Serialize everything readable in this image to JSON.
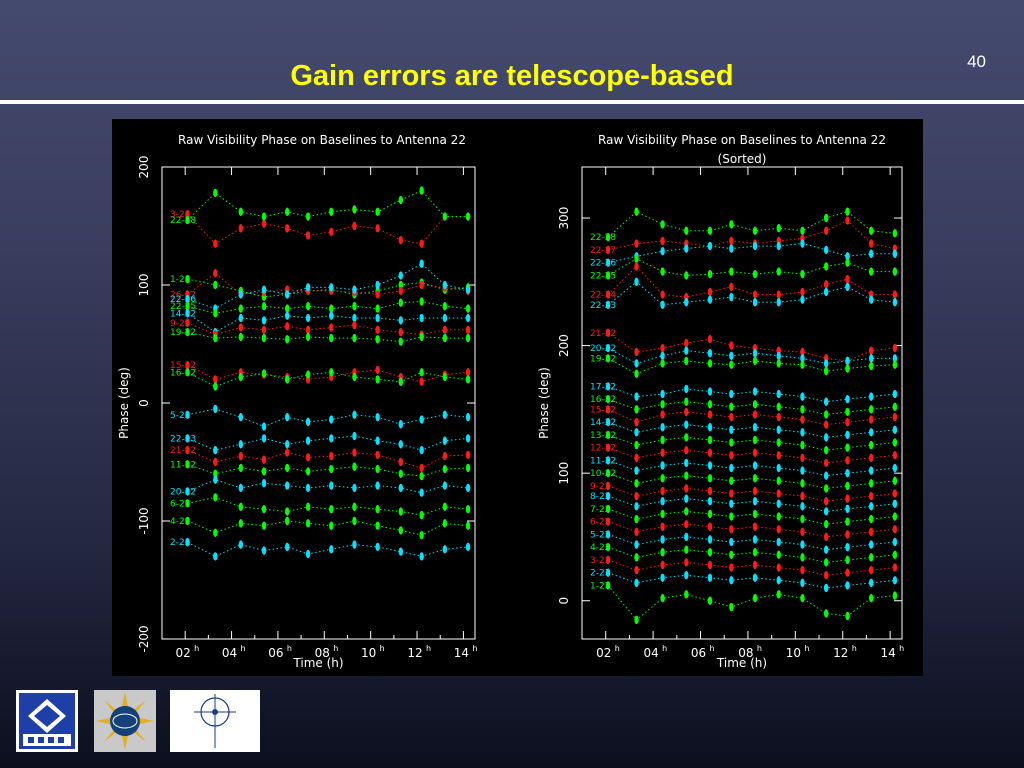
{
  "slide": {
    "number": "40",
    "title": "Gain errors are telescope-based"
  },
  "logos": {
    "nrao": "NRAO",
    "nsf": "NSF",
    "aui": "Associated Universities, Inc."
  },
  "colors": {
    "title": "#ffff00",
    "green": "#00ff00",
    "red": "#ff1a1a",
    "cyan": "#00e5ff"
  },
  "chart_data": [
    {
      "type": "scatter",
      "title": "Raw Visibility Phase on Baselines to Antenna 22",
      "subtitle": "",
      "xlabel": "Time (h)",
      "ylabel": "Phase (deg)",
      "xlim": [
        1.0,
        14.5
      ],
      "ylim": [
        -200,
        200
      ],
      "x_ticks": [
        2,
        4,
        6,
        8,
        10,
        12,
        14
      ],
      "x_tick_labels": [
        "02",
        "04",
        "06",
        "08",
        "10",
        "12",
        "14"
      ],
      "y_ticks": [
        -200,
        -100,
        0,
        100,
        200
      ],
      "y_tick_labels": [
        "-200",
        "-100",
        "0",
        "100",
        "200"
      ],
      "x": [
        2.1,
        3.3,
        4.4,
        5.4,
        6.4,
        7.3,
        8.3,
        9.3,
        10.3,
        11.3,
        12.2,
        13.2,
        14.2
      ],
      "series": [
        {
          "name": "3-22",
          "color": "red",
          "values": [
            160,
            135,
            148,
            152,
            148,
            142,
            145,
            150,
            148,
            138,
            135,
            158,
            158
          ]
        },
        {
          "name": "22-28",
          "color": "green",
          "values": [
            155,
            178,
            162,
            158,
            162,
            158,
            162,
            164,
            162,
            172,
            180,
            158,
            158
          ]
        },
        {
          "name": "1-22",
          "color": "green",
          "values": [
            105,
            100,
            95,
            90,
            92,
            95,
            96,
            92,
            95,
            100,
            102,
            96,
            98
          ]
        },
        {
          "name": "26-22",
          "color": "red",
          "values": [
            92,
            110,
            92,
            94,
            96,
            95,
            95,
            94,
            92,
            95,
            100,
            98,
            95
          ]
        },
        {
          "name": "22-26",
          "color": "cyan",
          "values": [
            88,
            80,
            92,
            96,
            92,
            98,
            98,
            96,
            100,
            108,
            118,
            100,
            96
          ]
        },
        {
          "name": "22-25",
          "color": "green",
          "values": [
            82,
            76,
            80,
            82,
            80,
            82,
            80,
            82,
            80,
            85,
            86,
            82,
            80
          ]
        },
        {
          "name": "14-22",
          "color": "cyan",
          "values": [
            76,
            60,
            72,
            70,
            74,
            72,
            74,
            72,
            72,
            70,
            72,
            72,
            72
          ]
        },
        {
          "name": "9-22",
          "color": "red",
          "values": [
            68,
            58,
            64,
            62,
            65,
            62,
            64,
            66,
            62,
            60,
            58,
            62,
            62
          ]
        },
        {
          "name": "19-22",
          "color": "green",
          "values": [
            60,
            55,
            56,
            55,
            54,
            56,
            55,
            55,
            54,
            52,
            56,
            55,
            55
          ]
        },
        {
          "name": "15-22",
          "color": "red",
          "values": [
            32,
            20,
            26,
            24,
            22,
            20,
            22,
            26,
            28,
            22,
            18,
            24,
            26
          ]
        },
        {
          "name": "16-22",
          "color": "green",
          "values": [
            26,
            14,
            22,
            25,
            20,
            24,
            26,
            22,
            20,
            18,
            26,
            22,
            20
          ]
        },
        {
          "name": "5-22",
          "color": "cyan",
          "values": [
            -10,
            -5,
            -12,
            -20,
            -12,
            -16,
            -14,
            -10,
            -12,
            -18,
            -14,
            -10,
            -12
          ]
        },
        {
          "name": "22-23",
          "color": "cyan",
          "values": [
            -30,
            -40,
            -35,
            -30,
            -35,
            -32,
            -30,
            -28,
            -32,
            -35,
            -40,
            -32,
            -30
          ]
        },
        {
          "name": "21-22",
          "color": "red",
          "values": [
            -40,
            -50,
            -45,
            -48,
            -42,
            -46,
            -45,
            -42,
            -44,
            -50,
            -55,
            -45,
            -44
          ]
        },
        {
          "name": "11-22",
          "color": "green",
          "values": [
            -52,
            -60,
            -55,
            -58,
            -55,
            -58,
            -56,
            -54,
            -56,
            -60,
            -62,
            -56,
            -55
          ]
        },
        {
          "name": "20-22",
          "color": "cyan",
          "values": [
            -75,
            -65,
            -72,
            -68,
            -70,
            -72,
            -70,
            -72,
            -70,
            -72,
            -76,
            -70,
            -72
          ]
        },
        {
          "name": "6-22",
          "color": "green",
          "values": [
            -85,
            -80,
            -88,
            -90,
            -92,
            -88,
            -90,
            -88,
            -90,
            -92,
            -95,
            -88,
            -90
          ]
        },
        {
          "name": "4-22",
          "color": "green",
          "values": [
            -100,
            -110,
            -102,
            -104,
            -100,
            -102,
            -104,
            -100,
            -104,
            -108,
            -112,
            -102,
            -104
          ]
        },
        {
          "name": "2-22",
          "color": "cyan",
          "values": [
            -118,
            -130,
            -120,
            -125,
            -122,
            -128,
            -124,
            -120,
            -122,
            -126,
            -130,
            -124,
            -122
          ]
        }
      ]
    },
    {
      "type": "scatter",
      "title": "Raw Visibility Phase on Baselines to Antenna 22",
      "subtitle": "(Sorted)",
      "xlabel": "Time (h)",
      "ylabel": "Phase (deg)",
      "xlim": [
        1.0,
        14.5
      ],
      "ylim": [
        -30,
        340
      ],
      "x_ticks": [
        2,
        4,
        6,
        8,
        10,
        12,
        14
      ],
      "x_tick_labels": [
        "02",
        "04",
        "06",
        "08",
        "10",
        "12",
        "14"
      ],
      "y_ticks": [
        0,
        100,
        200,
        300
      ],
      "y_tick_labels": [
        "0",
        "100",
        "200",
        "300"
      ],
      "x": [
        2.1,
        3.3,
        4.4,
        5.4,
        6.4,
        7.3,
        8.3,
        9.3,
        10.3,
        11.3,
        12.2,
        13.2,
        14.2
      ],
      "series": [
        {
          "name": "22-28",
          "color": "green",
          "values": [
            285,
            305,
            295,
            290,
            290,
            295,
            290,
            292,
            290,
            300,
            305,
            290,
            288
          ]
        },
        {
          "name": "22-27",
          "color": "red",
          "values": [
            275,
            280,
            282,
            280,
            278,
            282,
            280,
            282,
            284,
            290,
            298,
            280,
            276
          ]
        },
        {
          "name": "22-26",
          "color": "cyan",
          "values": [
            265,
            270,
            274,
            276,
            278,
            276,
            278,
            278,
            280,
            275,
            270,
            272,
            272
          ]
        },
        {
          "name": "22-25",
          "color": "green",
          "values": [
            255,
            268,
            258,
            255,
            256,
            258,
            256,
            258,
            256,
            262,
            265,
            258,
            258
          ]
        },
        {
          "name": "22-24",
          "color": "red",
          "values": [
            240,
            262,
            240,
            238,
            242,
            246,
            240,
            240,
            242,
            248,
            252,
            240,
            240
          ]
        },
        {
          "name": "22-23",
          "color": "cyan",
          "values": [
            232,
            250,
            232,
            234,
            236,
            238,
            234,
            234,
            236,
            242,
            246,
            236,
            234
          ]
        },
        {
          "name": "21-22",
          "color": "red",
          "values": [
            210,
            195,
            198,
            202,
            205,
            200,
            198,
            196,
            195,
            190,
            188,
            196,
            198
          ]
        },
        {
          "name": "20-22",
          "color": "cyan",
          "values": [
            198,
            186,
            192,
            196,
            194,
            192,
            194,
            192,
            190,
            186,
            188,
            190,
            190
          ]
        },
        {
          "name": "19-22",
          "color": "green",
          "values": [
            190,
            178,
            186,
            188,
            186,
            185,
            188,
            186,
            185,
            180,
            182,
            184,
            185
          ]
        },
        {
          "name": "17-22",
          "color": "cyan",
          "values": [
            168,
            160,
            162,
            166,
            164,
            162,
            164,
            162,
            160,
            156,
            158,
            160,
            162
          ]
        },
        {
          "name": "16-22",
          "color": "green",
          "values": [
            158,
            150,
            154,
            156,
            154,
            152,
            154,
            152,
            150,
            146,
            148,
            150,
            152
          ]
        },
        {
          "name": "15-22",
          "color": "red",
          "values": [
            150,
            140,
            146,
            148,
            146,
            144,
            146,
            144,
            142,
            138,
            140,
            142,
            144
          ]
        },
        {
          "name": "14-22",
          "color": "cyan",
          "values": [
            140,
            132,
            136,
            138,
            136,
            134,
            136,
            134,
            132,
            128,
            130,
            132,
            134
          ]
        },
        {
          "name": "13-22",
          "color": "green",
          "values": [
            130,
            122,
            126,
            128,
            126,
            124,
            126,
            124,
            122,
            118,
            120,
            122,
            124
          ]
        },
        {
          "name": "12-22",
          "color": "red",
          "values": [
            120,
            112,
            116,
            118,
            116,
            114,
            116,
            114,
            112,
            108,
            110,
            112,
            114
          ]
        },
        {
          "name": "11-22",
          "color": "cyan",
          "values": [
            110,
            102,
            106,
            108,
            106,
            104,
            106,
            104,
            102,
            98,
            100,
            102,
            104
          ]
        },
        {
          "name": "10-22",
          "color": "green",
          "values": [
            100,
            92,
            96,
            98,
            96,
            94,
            96,
            94,
            92,
            88,
            90,
            92,
            94
          ]
        },
        {
          "name": "9-22",
          "color": "red",
          "values": [
            90,
            82,
            86,
            88,
            86,
            84,
            86,
            84,
            82,
            78,
            80,
            82,
            84
          ]
        },
        {
          "name": "8-22",
          "color": "cyan",
          "values": [
            82,
            74,
            78,
            80,
            78,
            76,
            78,
            76,
            74,
            70,
            72,
            74,
            76
          ]
        },
        {
          "name": "7-22",
          "color": "green",
          "values": [
            72,
            64,
            68,
            70,
            68,
            66,
            68,
            66,
            64,
            60,
            62,
            64,
            66
          ]
        },
        {
          "name": "6-22",
          "color": "red",
          "values": [
            62,
            54,
            58,
            60,
            58,
            56,
            58,
            56,
            54,
            50,
            52,
            54,
            56
          ]
        },
        {
          "name": "5-22",
          "color": "cyan",
          "values": [
            52,
            44,
            48,
            50,
            48,
            46,
            48,
            46,
            44,
            40,
            42,
            44,
            46
          ]
        },
        {
          "name": "4-22",
          "color": "green",
          "values": [
            42,
            34,
            38,
            40,
            38,
            36,
            38,
            36,
            34,
            30,
            32,
            34,
            36
          ]
        },
        {
          "name": "3-22",
          "color": "red",
          "values": [
            32,
            24,
            28,
            30,
            28,
            26,
            28,
            26,
            24,
            20,
            22,
            24,
            26
          ]
        },
        {
          "name": "2-22",
          "color": "cyan",
          "values": [
            22,
            14,
            18,
            20,
            18,
            16,
            18,
            16,
            14,
            10,
            12,
            14,
            16
          ]
        },
        {
          "name": "1-22",
          "color": "green",
          "values": [
            12,
            -15,
            2,
            5,
            0,
            -5,
            2,
            5,
            2,
            -10,
            -12,
            2,
            4
          ]
        }
      ]
    }
  ]
}
